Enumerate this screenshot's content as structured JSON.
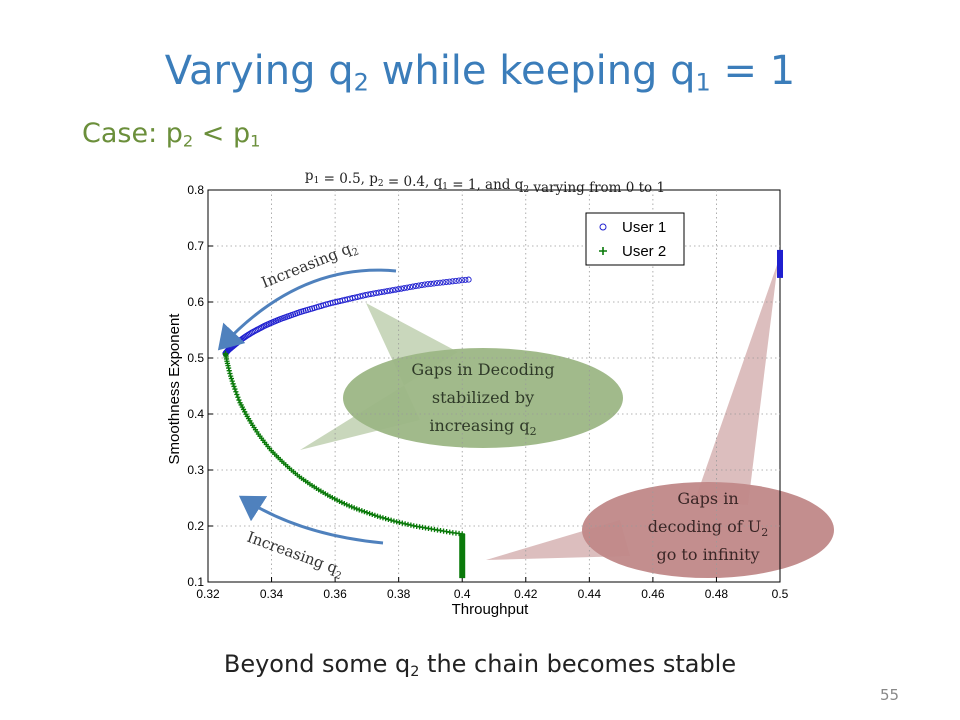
{
  "slide": {
    "title": {
      "main": "Varying q",
      "sub1": "2",
      "mid": " while keeping q",
      "sub2": "1",
      "end": " = 1"
    },
    "subtitle": {
      "main": "Case: p",
      "sub1": "2",
      "mid": " < p",
      "sub2": "1"
    },
    "footer": {
      "main": "Beyond some q",
      "sub": "2",
      "end": "  the chain becomes stable"
    },
    "page_number": "55"
  },
  "callouts": {
    "green": {
      "line1": "Gaps in Decoding",
      "line2": "stabilized by",
      "line3": "increasing q",
      "line3_sub": "2",
      "color": "#9CB685"
    },
    "red": {
      "line1": "Gaps in",
      "line2": "decoding of U",
      "line2_sub": "2",
      "line3": "go to infinity",
      "color": "#C08888"
    }
  },
  "arrows": {
    "upper": {
      "label": "Increasing q",
      "label_sub": "2"
    },
    "lower": {
      "label": "Increasing q",
      "label_sub": "2"
    },
    "color": "#4F81BD"
  },
  "chart_data": {
    "type": "scatter",
    "title": "p1 = 0.5, p2 = 0.4, q1 = 1, and q2 varying from 0 to 1",
    "title_parts": [
      {
        "text": "p",
        "sub": "1"
      },
      {
        "text": " = 0.5, p",
        "sub": "2"
      },
      {
        "text": " = 0.4, q",
        "sub": "1"
      },
      {
        "text": " = 1, and q",
        "sub": "2"
      },
      {
        "text": " varying from 0 to 1",
        "sub": ""
      }
    ],
    "xlabel": "Throughput",
    "ylabel": "Smoothness Exponent",
    "xlim": [
      0.32,
      0.5
    ],
    "ylim": [
      0.1,
      0.8
    ],
    "xticks": [
      "0.32",
      "0.34",
      "0.36",
      "0.38",
      "0.4",
      "0.42",
      "0.44",
      "0.46",
      "0.48",
      "0.5"
    ],
    "yticks": [
      "0.1",
      "0.2",
      "0.3",
      "0.4",
      "0.5",
      "0.6",
      "0.7",
      "0.8"
    ],
    "grid": true,
    "legend_position": "top-right",
    "series": [
      {
        "name": "User 1",
        "marker": "circle",
        "color": "#1F1FCF",
        "x": [
          0.3255,
          0.3262,
          0.3272,
          0.3285,
          0.33,
          0.332,
          0.334,
          0.336,
          0.338,
          0.34,
          0.343,
          0.346,
          0.349,
          0.352,
          0.355,
          0.358,
          0.361,
          0.364,
          0.367,
          0.37,
          0.373,
          0.376,
          0.379,
          0.382,
          0.385,
          0.388,
          0.391,
          0.394,
          0.397,
          0.4,
          0.402
        ],
        "y": [
          0.508,
          0.513,
          0.518,
          0.524,
          0.531,
          0.539,
          0.546,
          0.552,
          0.558,
          0.563,
          0.57,
          0.576,
          0.582,
          0.587,
          0.592,
          0.597,
          0.601,
          0.605,
          0.609,
          0.613,
          0.616,
          0.619,
          0.622,
          0.625,
          0.628,
          0.631,
          0.633,
          0.635,
          0.637,
          0.639,
          0.64
        ]
      },
      {
        "name": "User 2",
        "marker": "plus",
        "color": "#0A7A0A",
        "x": [
          0.3255,
          0.326,
          0.327,
          0.328,
          0.329,
          0.33,
          0.332,
          0.334,
          0.336,
          0.338,
          0.34,
          0.343,
          0.346,
          0.349,
          0.352,
          0.355,
          0.358,
          0.361,
          0.364,
          0.367,
          0.37,
          0.373,
          0.376,
          0.379,
          0.382,
          0.385,
          0.388,
          0.391,
          0.394,
          0.397,
          0.4
        ],
        "y": [
          0.508,
          0.493,
          0.47,
          0.452,
          0.436,
          0.421,
          0.399,
          0.38,
          0.363,
          0.348,
          0.334,
          0.317,
          0.301,
          0.287,
          0.275,
          0.264,
          0.254,
          0.245,
          0.237,
          0.23,
          0.224,
          0.218,
          0.213,
          0.208,
          0.204,
          0.2,
          0.197,
          0.194,
          0.191,
          0.188,
          0.186
        ]
      }
    ],
    "vertical_segments": [
      {
        "series": "User 2",
        "x": 0.4,
        "y_from": 0.107,
        "y_to": 0.186
      },
      {
        "series": "User 1",
        "x": 0.5,
        "y_from": 0.643,
        "y_to": 0.693
      }
    ]
  }
}
